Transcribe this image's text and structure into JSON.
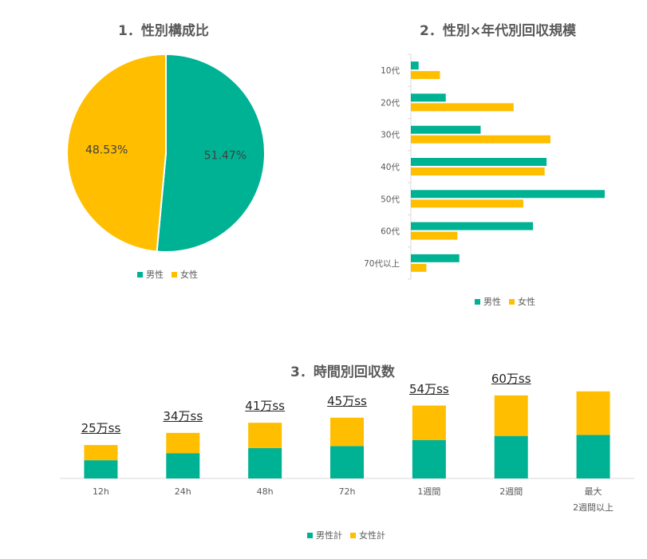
{
  "colors": {
    "male": "#00B294",
    "female": "#FFBE00",
    "axis": "#d9d9d9",
    "text": "#595959"
  },
  "chart_data": [
    {
      "type": "pie",
      "title": "1．性別構成比",
      "series": [
        {
          "name": "男性",
          "value": 51.47,
          "label": "51.47%"
        },
        {
          "name": "女性",
          "value": 48.53,
          "label": "48.53%"
        }
      ],
      "legend": [
        "男性",
        "女性"
      ],
      "legend_position": "bottom"
    },
    {
      "type": "bar",
      "orientation": "horizontal",
      "title": "2．性別×年代別回収規模",
      "categories": [
        "10代",
        "20代",
        "30代",
        "40代",
        "50代",
        "60代",
        "70代以上"
      ],
      "series": [
        {
          "name": "男性",
          "values": [
            4,
            18,
            36,
            70,
            100,
            63,
            25
          ]
        },
        {
          "name": "女性",
          "values": [
            15,
            53,
            72,
            69,
            58,
            24,
            8
          ]
        }
      ],
      "xlim": [
        0,
        100
      ],
      "grid": false,
      "legend_position": "bottom"
    },
    {
      "type": "bar",
      "stacked": true,
      "title": "3．時間別回収数",
      "categories": [
        "12h",
        "24h",
        "48h",
        "72h",
        "1週間",
        "2週間",
        "最大\n2週間以上"
      ],
      "series": [
        {
          "name": "男性計",
          "values": [
            18,
            25,
            30,
            32,
            38,
            42,
            43
          ]
        },
        {
          "name": "女性計",
          "values": [
            15,
            20,
            25,
            28,
            34,
            40,
            43
          ]
        }
      ],
      "annotations": [
        "25万ss",
        "34万ss",
        "41万ss",
        "45万ss",
        "54万ss",
        "60万ss",
        ""
      ],
      "ylim": [
        0,
        100
      ],
      "grid": false,
      "legend_position": "bottom"
    }
  ]
}
